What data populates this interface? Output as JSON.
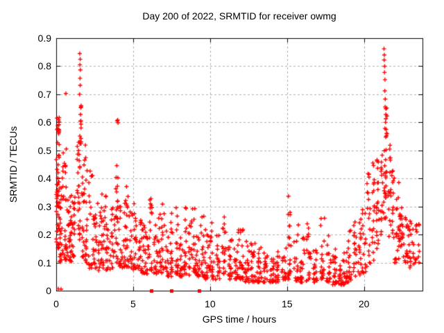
{
  "chart_data": {
    "type": "scatter",
    "title": "Day 200 of 2022, SRMTID for receiver owmg",
    "xlabel": "GPS time / hours",
    "ylabel": "SRMTID / TECUs",
    "xlim": [
      0,
      23.8
    ],
    "ylim": [
      0,
      0.9
    ],
    "xticks": [
      0,
      5,
      10,
      15,
      20
    ],
    "xtick_labels": [
      "0",
      "5",
      "10",
      "15",
      "20"
    ],
    "yticks": [
      0,
      0.1,
      0.2,
      0.3,
      0.4,
      0.5,
      0.6,
      0.7,
      0.8,
      0.9
    ],
    "ytick_labels": [
      "0",
      "0.1",
      "0.2",
      "0.3",
      "0.4",
      "0.5",
      "0.6",
      "0.7",
      "0.8",
      "0.9"
    ],
    "grid": true,
    "grid_style": "dashed",
    "grid_color": "#b0b0b0",
    "axis_color": "#000000",
    "background_color": "#ffffff",
    "seed": 20220720,
    "series": [
      {
        "name": "SRMTID",
        "marker": "plus",
        "color": "#ff0000",
        "columns_format": [
          "x_center",
          "x_halfwidth",
          "n_points",
          "y_min",
          "y_max",
          "bottom_bias_power"
        ],
        "columns": [
          [
            0.1,
            0.1,
            55,
            0.15,
            0.62,
            1.3
          ],
          [
            0.3,
            0.12,
            25,
            0.1,
            0.47,
            1.3
          ],
          [
            0.22,
            0.12,
            2,
            0.003,
            0.008,
            1
          ],
          [
            0.55,
            0.15,
            30,
            0.1,
            0.52,
            1.3
          ],
          [
            0.85,
            0.15,
            28,
            0.1,
            0.38,
            1.3
          ],
          [
            1.1,
            0.12,
            22,
            0.12,
            0.35,
            1.3
          ],
          [
            1.45,
            0.1,
            30,
            0.18,
            0.55,
            1.3
          ],
          [
            1.58,
            0.05,
            10,
            0.5,
            0.68,
            1
          ],
          [
            1.75,
            0.1,
            20,
            0.12,
            0.48,
            1.4
          ],
          [
            1.95,
            0.1,
            18,
            0.1,
            0.52,
            1.5
          ],
          [
            2.25,
            0.15,
            20,
            0.08,
            0.44,
            1.5
          ],
          [
            2.55,
            0.15,
            22,
            0.08,
            0.32,
            1.5
          ],
          [
            2.85,
            0.15,
            18,
            0.07,
            0.3,
            1.5
          ],
          [
            3.1,
            0.15,
            20,
            0.08,
            0.38,
            1.5
          ],
          [
            3.4,
            0.15,
            18,
            0.07,
            0.28,
            1.5
          ],
          [
            3.7,
            0.12,
            18,
            0.08,
            0.3,
            1.5
          ],
          [
            3.95,
            0.08,
            26,
            0.1,
            0.635,
            1.3
          ],
          [
            4.2,
            0.12,
            16,
            0.08,
            0.3,
            1.5
          ],
          [
            4.45,
            0.1,
            16,
            0.08,
            0.35,
            1.5
          ],
          [
            4.65,
            0.1,
            18,
            0.08,
            0.42,
            1.5
          ],
          [
            4.9,
            0.12,
            16,
            0.07,
            0.3,
            1.6
          ],
          [
            5.15,
            0.1,
            18,
            0.08,
            0.38,
            1.6
          ],
          [
            5.4,
            0.12,
            16,
            0.07,
            0.28,
            1.6
          ],
          [
            5.65,
            0.12,
            16,
            0.06,
            0.25,
            1.6
          ],
          [
            5.9,
            0.12,
            16,
            0.06,
            0.22,
            1.6
          ],
          [
            6.15,
            0.1,
            18,
            0.06,
            0.33,
            1.7
          ],
          [
            6.45,
            0.12,
            16,
            0.06,
            0.25,
            1.7
          ],
          [
            6.7,
            0.1,
            16,
            0.06,
            0.28,
            1.7
          ],
          [
            6.95,
            0.1,
            16,
            0.06,
            0.31,
            1.7
          ],
          [
            7.2,
            0.12,
            16,
            0.05,
            0.25,
            1.7
          ],
          [
            7.5,
            0.1,
            18,
            0.05,
            0.3,
            1.7
          ],
          [
            7.85,
            0.1,
            18,
            0.06,
            0.35,
            1.7
          ],
          [
            8.1,
            0.12,
            16,
            0.05,
            0.25,
            1.7
          ],
          [
            8.4,
            0.1,
            18,
            0.06,
            0.33,
            1.7
          ],
          [
            8.7,
            0.12,
            16,
            0.05,
            0.25,
            1.7
          ],
          [
            8.95,
            0.1,
            16,
            0.06,
            0.32,
            1.7
          ],
          [
            9.2,
            0.12,
            16,
            0.05,
            0.22,
            1.7
          ],
          [
            9.5,
            0.12,
            18,
            0.05,
            0.3,
            1.7
          ],
          [
            9.8,
            0.15,
            18,
            0.04,
            0.22,
            1.7
          ],
          [
            10.1,
            0.15,
            20,
            0.04,
            0.25,
            1.7
          ],
          [
            10.5,
            0.15,
            18,
            0.04,
            0.2,
            1.7
          ],
          [
            10.9,
            0.12,
            20,
            0.05,
            0.275,
            1.7
          ],
          [
            11.3,
            0.15,
            20,
            0.04,
            0.2,
            1.7
          ],
          [
            11.7,
            0.15,
            20,
            0.04,
            0.22,
            1.7
          ],
          [
            12.0,
            0.15,
            22,
            0.04,
            0.22,
            1.8
          ],
          [
            12.4,
            0.15,
            22,
            0.03,
            0.18,
            1.8
          ],
          [
            12.8,
            0.15,
            22,
            0.03,
            0.17,
            1.8
          ],
          [
            13.2,
            0.15,
            22,
            0.03,
            0.16,
            1.8
          ],
          [
            13.6,
            0.15,
            20,
            0.03,
            0.15,
            1.8
          ],
          [
            14.0,
            0.15,
            20,
            0.03,
            0.16,
            1.8
          ],
          [
            14.4,
            0.15,
            18,
            0.03,
            0.15,
            1.8
          ],
          [
            14.8,
            0.15,
            18,
            0.04,
            0.18,
            1.8
          ],
          [
            15.2,
            0.15,
            20,
            0.04,
            0.3,
            1.9
          ],
          [
            15.6,
            0.15,
            18,
            0.03,
            0.26,
            1.9
          ],
          [
            16.0,
            0.15,
            20,
            0.03,
            0.2,
            1.8
          ],
          [
            16.4,
            0.15,
            20,
            0.03,
            0.25,
            1.9
          ],
          [
            16.8,
            0.15,
            18,
            0.03,
            0.18,
            1.8
          ],
          [
            17.3,
            0.15,
            20,
            0.04,
            0.28,
            1.9
          ],
          [
            17.7,
            0.15,
            18,
            0.03,
            0.2,
            1.8
          ],
          [
            18.1,
            0.15,
            18,
            0.02,
            0.15,
            1.7
          ],
          [
            18.5,
            0.15,
            18,
            0.02,
            0.12,
            1.5
          ],
          [
            18.8,
            0.12,
            16,
            0.02,
            0.14,
            1.5
          ],
          [
            19.1,
            0.12,
            16,
            0.03,
            0.22,
            1.5
          ],
          [
            19.4,
            0.1,
            16,
            0.04,
            0.3,
            1.6
          ],
          [
            19.7,
            0.12,
            16,
            0.05,
            0.28,
            1.5
          ],
          [
            20.0,
            0.12,
            16,
            0.06,
            0.3,
            1.4
          ],
          [
            20.3,
            0.12,
            18,
            0.08,
            0.42,
            1.4
          ],
          [
            20.6,
            0.1,
            18,
            0.1,
            0.47,
            1.3
          ],
          [
            20.9,
            0.1,
            20,
            0.15,
            0.5,
            1.2
          ],
          [
            21.15,
            0.08,
            14,
            0.18,
            0.5,
            1.2
          ],
          [
            21.35,
            0.08,
            18,
            0.25,
            0.58,
            1.2
          ],
          [
            21.45,
            0.07,
            12,
            0.38,
            0.66,
            1
          ],
          [
            21.65,
            0.1,
            16,
            0.18,
            0.52,
            1.2
          ],
          [
            21.9,
            0.1,
            16,
            0.1,
            0.45,
            1.4
          ],
          [
            22.15,
            0.12,
            18,
            0.1,
            0.4,
            1.5
          ],
          [
            22.45,
            0.15,
            24,
            0.12,
            0.3,
            1.4
          ],
          [
            22.8,
            0.15,
            18,
            0.1,
            0.28,
            1.4
          ],
          [
            23.1,
            0.15,
            16,
            0.08,
            0.26,
            1.4
          ],
          [
            23.45,
            0.15,
            14,
            0.1,
            0.25,
            1.3
          ]
        ],
        "notable_points": [
          [
            0.63,
            0.703
          ],
          [
            15.09,
            0.337
          ],
          [
            1.53,
            0.845
          ],
          [
            1.56,
            0.825
          ],
          [
            1.54,
            0.805
          ],
          [
            1.57,
            0.787
          ],
          [
            1.55,
            0.757
          ],
          [
            1.56,
            0.732
          ],
          [
            1.52,
            0.7
          ],
          [
            1.6,
            0.652
          ],
          [
            1.58,
            0.628
          ],
          [
            1.61,
            0.605
          ],
          [
            21.3,
            0.862
          ],
          [
            21.32,
            0.84
          ],
          [
            21.31,
            0.822
          ],
          [
            21.34,
            0.8
          ],
          [
            21.33,
            0.778
          ],
          [
            21.36,
            0.752
          ],
          [
            21.35,
            0.712
          ],
          [
            21.38,
            0.683
          ],
          [
            21.37,
            0.655
          ],
          [
            21.42,
            0.628
          ],
          [
            21.4,
            0.6
          ],
          [
            21.44,
            0.575
          ],
          [
            21.46,
            0.552
          ]
        ]
      },
      {
        "name": "axis-flag-squares",
        "marker": "filled-square",
        "color": "#ff0000",
        "points": [
          [
            6.17,
            0
          ],
          [
            7.47,
            0
          ],
          [
            9.28,
            0
          ]
        ]
      }
    ]
  }
}
